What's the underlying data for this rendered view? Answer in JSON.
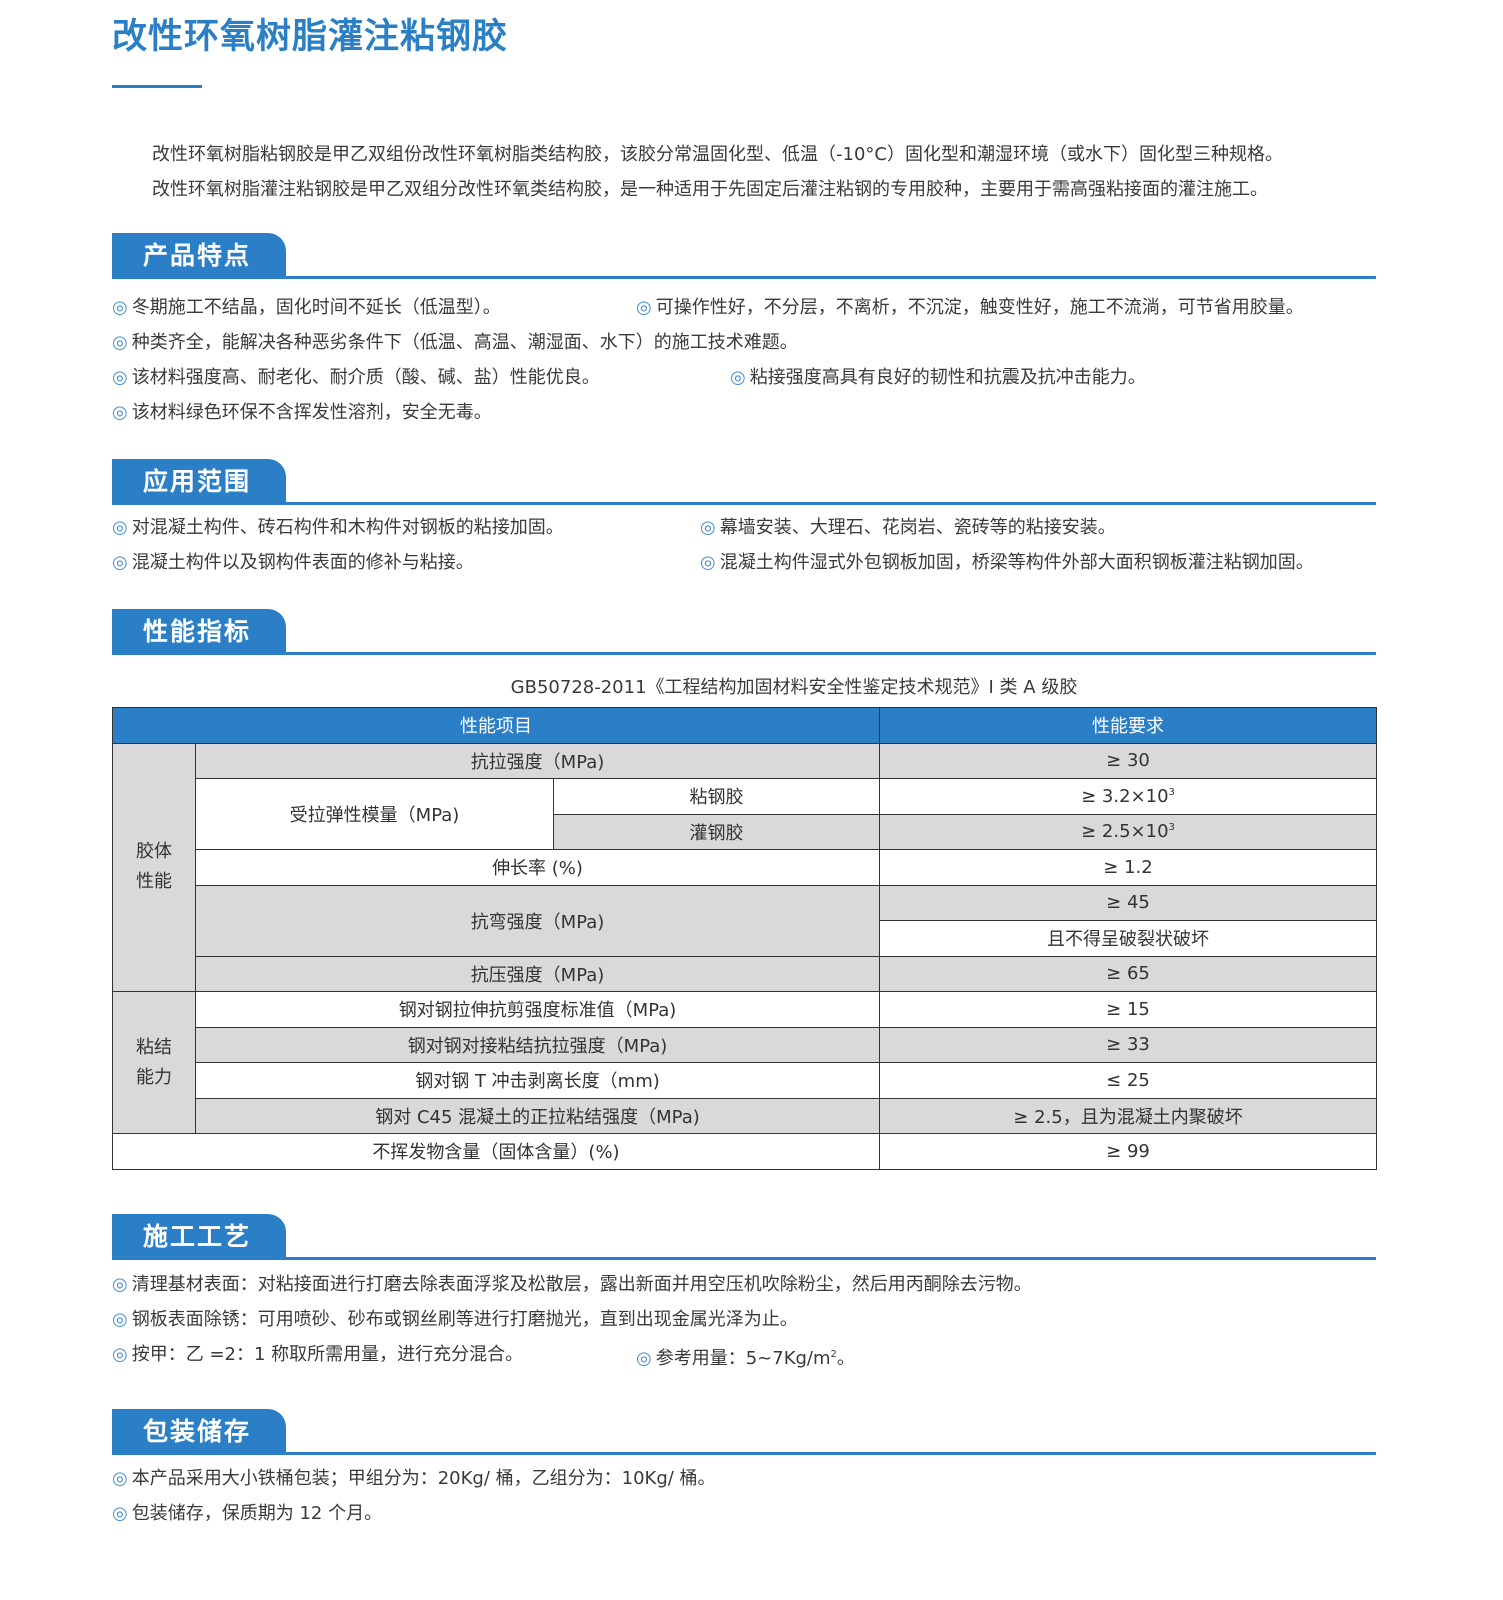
{
  "title": "改性环氧树脂灌注粘钢胶",
  "intro": [
    "改性环氧树脂粘钢胶是甲乙双组份改性环氧树脂类结构胶，该胶分常温固化型、低温（-10°C）固化型和潮湿环境（或水下）固化型三种规格。",
    "改性环氧树脂灌注粘钢胶是甲乙双组分改性环氧类结构胶，是一种适用于先固定后灌注粘钢的专用胶种，主要用于需高强粘接面的灌注施工。"
  ],
  "bullet": "◎",
  "accent": "#2a7fc6",
  "sections": {
    "features": {
      "title": "产品特点",
      "items": [
        "冬期施工不结晶，固化时间不延长（低温型）。",
        "可操作性好，不分层，不离析，不沉淀，触变性好，施工不流淌，可节省用胶量。",
        "种类齐全，能解决各种恶劣条件下（低温、高温、潮湿面、水下）的施工技术难题。",
        "该材料强度高、耐老化、耐介质（酸、碱、盐）性能优良。",
        "粘接强度高具有良好的韧性和抗震及抗冲击能力。",
        "该材料绿色环保不含挥发性溶剂，安全无毒。"
      ]
    },
    "application": {
      "title": "应用范围",
      "items": [
        "对混凝土构件、砖石构件和木构件对钢板的粘接加固。",
        "幕墙安装、大理石、花岗岩、瓷砖等的粘接安装。",
        "混凝土构件以及钢构件表面的修补与粘接。",
        "混凝土构件湿式外包钢板加固，桥梁等构件外部大面积钢板灌注粘钢加固。"
      ]
    },
    "performance": {
      "title": "性能指标",
      "standard": "GB50728-2011《工程结构加固材料安全性鉴定技术规范》I 类 A 级胶",
      "table": {
        "headers": [
          "性能项目",
          "性能要求"
        ],
        "group1": "胶体\n性能",
        "group2": "粘结\n能力",
        "r1": [
          "抗拉强度（MPa)",
          "≥ 30"
        ],
        "r2": [
          "受拉弹性模量（MPa)",
          "粘钢胶",
          "≥ 3.2×10",
          "3"
        ],
        "r3": [
          "灌钢胶",
          "≥ 2.5×10",
          "3"
        ],
        "r4": [
          "伸长率 (%)",
          "≥ 1.2"
        ],
        "r5": [
          "抗弯强度（MPa)",
          "≥ 45"
        ],
        "r6": [
          "且不得呈破裂状破坏"
        ],
        "r7": [
          "抗压强度（MPa)",
          "≥ 65"
        ],
        "r8": [
          "钢对钢拉伸抗剪强度标准值（MPa)",
          "≥ 15"
        ],
        "r9": [
          "钢对钢对接粘结抗拉强度（MPa)",
          "≥ 33"
        ],
        "r10": [
          "钢对钢 T 冲击剥离长度（mm)",
          "≤ 25"
        ],
        "r11": [
          "钢对 C45 混凝土的正拉粘结强度（MPa)",
          "≥ 2.5，且为混凝土内聚破坏"
        ],
        "r12": [
          "不挥发物含量（固体含量）(%)",
          "≥ 99"
        ]
      }
    },
    "process": {
      "title": "施工工艺",
      "items": [
        "清理基材表面：对粘接面进行打磨去除表面浮浆及松散层，露出新面并用空压机吹除粉尘，然后用丙酮除去污物。",
        "钢板表面除锈：可用喷砂、砂布或钢丝刷等进行打磨抛光，直到出现金属光泽为止。",
        "按甲：乙 =2：1 称取所需用量，进行充分混合。"
      ],
      "dosage": [
        "参考用量：5~7Kg/m",
        "2",
        "。"
      ]
    },
    "storage": {
      "title": "包装储存",
      "items": [
        "本产品采用大小铁桶包装；甲组分为：20Kg/ 桶，乙组分为：10Kg/ 桶。",
        "包装储存，保质期为 12 个月。"
      ]
    }
  }
}
